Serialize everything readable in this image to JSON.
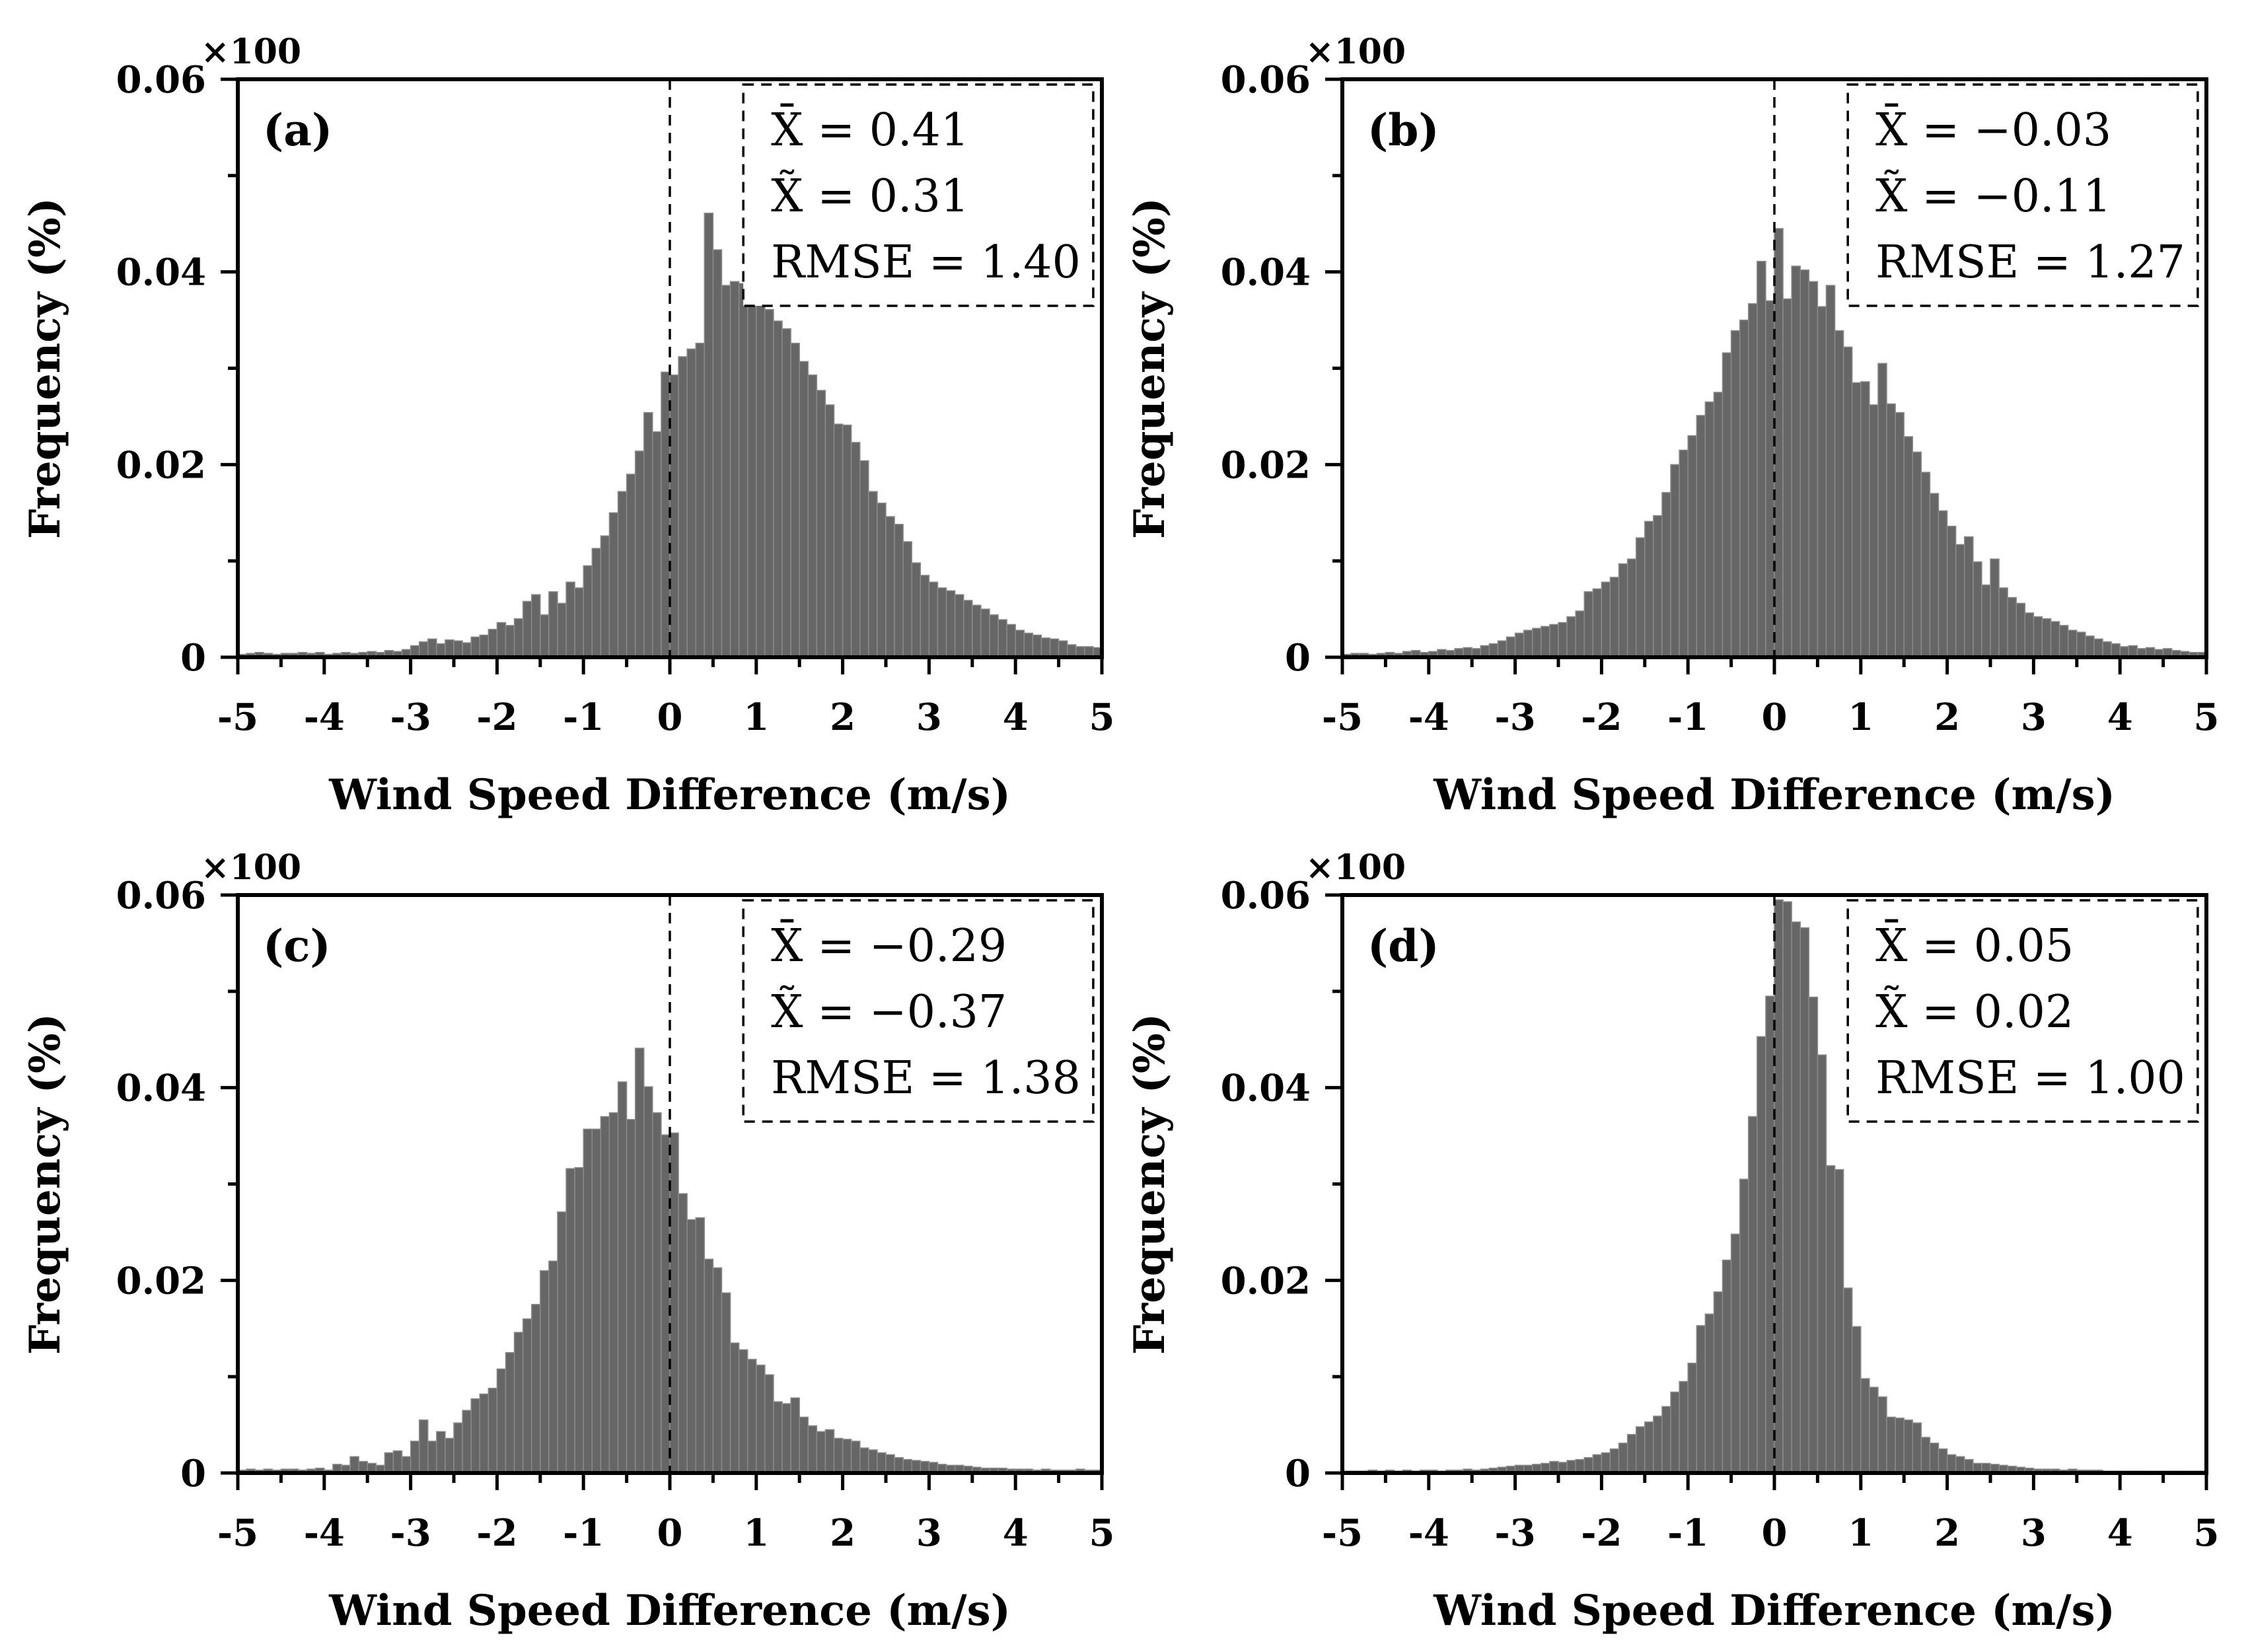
{
  "chart_data": [
    {
      "type": "bar",
      "panel_label": "(a)",
      "multiplier": "×100",
      "xlabel": "Wind Speed Difference (m/s)",
      "ylabel": "Frequency (%)",
      "xlim": [
        -5,
        5
      ],
      "ylim": [
        0,
        0.06
      ],
      "xticks": [
        "-5",
        "-4",
        "-3",
        "-2",
        "-1",
        "0",
        "1",
        "2",
        "3",
        "4",
        "5"
      ],
      "yticks": [
        "0",
        "0.02",
        "0.04",
        "0.06"
      ],
      "bin_width": 0.1,
      "bin_start": -5.0,
      "values": [
        0.0003,
        0.0004,
        0.0005,
        0.0004,
        0.0003,
        0.0004,
        0.0004,
        0.0005,
        0.0004,
        0.0005,
        0.0003,
        0.0004,
        0.0005,
        0.0004,
        0.0005,
        0.0006,
        0.0005,
        0.0007,
        0.0006,
        0.0008,
        0.0012,
        0.0016,
        0.0019,
        0.0014,
        0.0018,
        0.0017,
        0.0015,
        0.0021,
        0.0023,
        0.0029,
        0.0036,
        0.0033,
        0.004,
        0.0058,
        0.0065,
        0.0044,
        0.0068,
        0.0056,
        0.0078,
        0.0072,
        0.0095,
        0.0113,
        0.0126,
        0.015,
        0.0172,
        0.019,
        0.0214,
        0.0254,
        0.0234,
        0.0296,
        0.0293,
        0.0312,
        0.032,
        0.0326,
        0.0461,
        0.0423,
        0.0386,
        0.039,
        0.0388,
        0.0381,
        0.0383,
        0.0361,
        0.0349,
        0.0341,
        0.0326,
        0.0307,
        0.0293,
        0.0277,
        0.0262,
        0.0242,
        0.0241,
        0.0223,
        0.0204,
        0.0172,
        0.016,
        0.0146,
        0.0138,
        0.012,
        0.0098,
        0.0085,
        0.0078,
        0.0072,
        0.0069,
        0.0065,
        0.0059,
        0.0054,
        0.005,
        0.0044,
        0.0039,
        0.0034,
        0.0028,
        0.0025,
        0.0023,
        0.002,
        0.0019,
        0.0017,
        0.0013,
        0.0011,
        0.0011,
        0.001
      ],
      "stats": {
        "mean_label": "X̄ = 0.41",
        "median_label": "X̃ = 0.31",
        "rmse_label": "RMSE = 1.40"
      }
    },
    {
      "type": "bar",
      "panel_label": "(b)",
      "multiplier": "×100",
      "xlabel": "Wind Speed Difference (m/s)",
      "ylabel": "Frequency (%)",
      "xlim": [
        -5,
        5
      ],
      "ylim": [
        0,
        0.06
      ],
      "xticks": [
        "-5",
        "-4",
        "-3",
        "-2",
        "-1",
        "0",
        "1",
        "2",
        "3",
        "4",
        "5"
      ],
      "yticks": [
        "0",
        "0.02",
        "0.04",
        "0.06"
      ],
      "bin_width": 0.1,
      "bin_start": -5.0,
      "values": [
        0.0003,
        0.0004,
        0.0004,
        0.0003,
        0.0004,
        0.0005,
        0.0004,
        0.0006,
        0.0007,
        0.0005,
        0.0006,
        0.0008,
        0.0007,
        0.0009,
        0.001,
        0.0009,
        0.0012,
        0.0014,
        0.0017,
        0.0021,
        0.0025,
        0.0028,
        0.003,
        0.0032,
        0.0034,
        0.0036,
        0.0042,
        0.0048,
        0.0068,
        0.0071,
        0.0078,
        0.0083,
        0.0097,
        0.0102,
        0.0124,
        0.0141,
        0.0147,
        0.0171,
        0.02,
        0.0215,
        0.023,
        0.0251,
        0.0265,
        0.0275,
        0.0316,
        0.0339,
        0.035,
        0.0367,
        0.0411,
        0.037,
        0.0445,
        0.0372,
        0.0406,
        0.0402,
        0.039,
        0.0364,
        0.0386,
        0.0339,
        0.0322,
        0.0285,
        0.0286,
        0.0262,
        0.0305,
        0.0263,
        0.0254,
        0.0229,
        0.0213,
        0.0192,
        0.017,
        0.0152,
        0.0136,
        0.0117,
        0.0125,
        0.0099,
        0.0075,
        0.0102,
        0.0072,
        0.0062,
        0.0056,
        0.0046,
        0.0042,
        0.004,
        0.0037,
        0.0033,
        0.0028,
        0.0026,
        0.0022,
        0.0019,
        0.0016,
        0.0014,
        0.0011,
        0.0012,
        0.0009,
        0.001,
        0.0008,
        0.0009,
        0.0007,
        0.0006,
        0.0005,
        0.0005
      ],
      "stats": {
        "mean_label": "X̄ = −0.03",
        "median_label": "X̃ = −0.11",
        "rmse_label": "RMSE = 1.27"
      }
    },
    {
      "type": "bar",
      "panel_label": "(c)",
      "multiplier": "×100",
      "xlabel": "Wind Speed Difference (m/s)",
      "ylabel": "Frequency (%)",
      "xlim": [
        -5,
        5
      ],
      "ylim": [
        0,
        0.06
      ],
      "xticks": [
        "-5",
        "-4",
        "-3",
        "-2",
        "-1",
        "0",
        "1",
        "2",
        "3",
        "4",
        "5"
      ],
      "yticks": [
        "0",
        "0.02",
        "0.04",
        "0.06"
      ],
      "bin_width": 0.1,
      "bin_start": -5.0,
      "values": [
        0.0003,
        0.0004,
        0.0003,
        0.0004,
        0.0003,
        0.0004,
        0.0004,
        0.0003,
        0.0004,
        0.0005,
        0.0003,
        0.0009,
        0.0008,
        0.0017,
        0.0012,
        0.001,
        0.0008,
        0.0021,
        0.0023,
        0.0017,
        0.0033,
        0.0055,
        0.0033,
        0.0043,
        0.0036,
        0.0052,
        0.0065,
        0.0077,
        0.0082,
        0.0088,
        0.0108,
        0.0125,
        0.0146,
        0.016,
        0.0175,
        0.021,
        0.022,
        0.0271,
        0.0316,
        0.0317,
        0.0357,
        0.0357,
        0.037,
        0.0374,
        0.0406,
        0.0367,
        0.0441,
        0.0401,
        0.0374,
        0.0351,
        0.0353,
        0.029,
        0.0263,
        0.0265,
        0.0222,
        0.0213,
        0.0187,
        0.0135,
        0.0128,
        0.0118,
        0.0112,
        0.0102,
        0.0074,
        0.0072,
        0.0078,
        0.0058,
        0.0049,
        0.0043,
        0.0045,
        0.0036,
        0.0035,
        0.0033,
        0.0026,
        0.0024,
        0.0021,
        0.0019,
        0.0016,
        0.0014,
        0.0013,
        0.0012,
        0.0011,
        0.0009,
        0.0008,
        0.0008,
        0.0007,
        0.0006,
        0.0005,
        0.0005,
        0.0005,
        0.0004,
        0.0004,
        0.0004,
        0.0003,
        0.0004,
        0.0003,
        0.0003,
        0.0003,
        0.0004,
        0.0003,
        0.0003
      ],
      "stats": {
        "mean_label": "X̄ = −0.29",
        "median_label": "X̃ = −0.37",
        "rmse_label": "RMSE = 1.38"
      }
    },
    {
      "type": "bar",
      "panel_label": "(d)",
      "multiplier": "×100",
      "xlabel": "Wind Speed Difference (m/s)",
      "ylabel": "Frequency (%)",
      "xlim": [
        -5,
        5
      ],
      "ylim": [
        0,
        0.06
      ],
      "xticks": [
        "-5",
        "-4",
        "-3",
        "-2",
        "-1",
        "0",
        "1",
        "2",
        "3",
        "4",
        "5"
      ],
      "yticks": [
        "0",
        "0.02",
        "0.04",
        "0.06"
      ],
      "bin_width": 0.1,
      "bin_start": -5.0,
      "values": [
        0.0002,
        0.0002,
        0.0002,
        0.0003,
        0.0002,
        0.0003,
        0.0002,
        0.0003,
        0.0002,
        0.0003,
        0.0003,
        0.0002,
        0.0003,
        0.0003,
        0.0004,
        0.0003,
        0.0004,
        0.0005,
        0.0006,
        0.0007,
        0.0008,
        0.0008,
        0.0009,
        0.001,
        0.0012,
        0.0011,
        0.0013,
        0.0014,
        0.0016,
        0.0019,
        0.0021,
        0.0025,
        0.0031,
        0.004,
        0.0048,
        0.0053,
        0.0059,
        0.0069,
        0.0084,
        0.0095,
        0.0114,
        0.0153,
        0.0165,
        0.0188,
        0.0221,
        0.0248,
        0.0305,
        0.037,
        0.0453,
        0.0495,
        0.0595,
        0.0593,
        0.0572,
        0.0566,
        0.0494,
        0.0434,
        0.0319,
        0.0315,
        0.0192,
        0.0152,
        0.0098,
        0.0089,
        0.0079,
        0.0058,
        0.0057,
        0.0055,
        0.0052,
        0.0037,
        0.0031,
        0.0025,
        0.0019,
        0.0017,
        0.0014,
        0.001,
        0.001,
        0.0009,
        0.0008,
        0.0007,
        0.0006,
        0.0005,
        0.0004,
        0.0004,
        0.0004,
        0.0003,
        0.0004,
        0.0003,
        0.0003,
        0.0003,
        0.0002,
        0.0002,
        0.0002,
        0.0002,
        0.0002,
        0.0002,
        0.0002,
        0.0002,
        0.0002,
        0.0002,
        0.0002,
        0.0002
      ],
      "stats": {
        "mean_label": "X̄ = 0.05",
        "median_label": "X̃ = 0.02",
        "rmse_label": "RMSE = 1.00"
      }
    }
  ]
}
